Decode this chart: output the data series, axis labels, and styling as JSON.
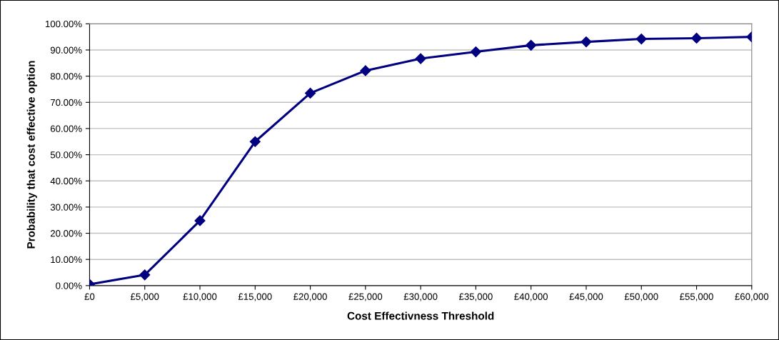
{
  "chart_data": {
    "type": "line",
    "xlabel": "Cost Effectivness Threshold",
    "ylabel": "Probability that cost effective option",
    "categories": [
      "£0",
      "£5,000",
      "£10,000",
      "£15,000",
      "£20,000",
      "£25,000",
      "£30,000",
      "£35,000",
      "£40,000",
      "£45,000",
      "£50,000",
      "£55,000",
      "£60,000"
    ],
    "series": [
      {
        "color": "#000080",
        "values": [
          0.5,
          4.1,
          24.8,
          55.0,
          73.5,
          82.1,
          86.7,
          89.3,
          91.8,
          93.1,
          94.2,
          94.5,
          95.0
        ]
      }
    ],
    "ylim": [
      0,
      100
    ],
    "yticks": [
      {
        "value": 0,
        "label": "0.00%"
      },
      {
        "value": 10,
        "label": "10.00%"
      },
      {
        "value": 20,
        "label": "20.00%"
      },
      {
        "value": 30,
        "label": "30.00%"
      },
      {
        "value": 40,
        "label": "40.00%"
      },
      {
        "value": 50,
        "label": "50.00%"
      },
      {
        "value": 60,
        "label": "60.00%"
      },
      {
        "value": 70,
        "label": "70.00%"
      },
      {
        "value": 80,
        "label": "80.00%"
      },
      {
        "value": 90,
        "label": "90.00%"
      },
      {
        "value": 100,
        "label": "100.00%"
      }
    ],
    "grid": "y",
    "marker": "diamond",
    "line_style": "solid"
  }
}
